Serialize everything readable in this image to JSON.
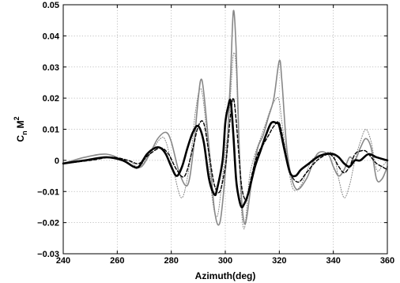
{
  "chart_data": {
    "type": "line",
    "xlabel": "Azimuth(deg)",
    "ylabel": {
      "base": "C",
      "sub": "n",
      "mid": "M",
      "sup": "2"
    },
    "xlim": [
      240,
      360
    ],
    "ylim": [
      -0.03,
      0.05
    ],
    "xticks": [
      240,
      260,
      280,
      300,
      320,
      340,
      360
    ],
    "yticks": [
      -0.03,
      -0.02,
      -0.01,
      0,
      0.01,
      0.02,
      0.03,
      0.04,
      0.05
    ],
    "xtick_labels": [
      "240",
      "260",
      "280",
      "300",
      "320",
      "340",
      "360"
    ],
    "ytick_labels": [
      "−0.03",
      "−0.02",
      "−0.01",
      "0",
      "0.01",
      "0.02",
      "0.03",
      "0.04",
      "0.05"
    ],
    "grid": true,
    "legend": false,
    "series": [
      {
        "style": "dotted",
        "color": "#808080",
        "x": [
          240,
          250,
          258,
          264,
          268,
          272,
          276,
          278,
          281,
          284,
          287,
          289,
          291,
          293,
          295,
          297,
          299,
          301,
          302,
          303,
          304,
          305,
          306,
          307,
          308,
          309,
          311,
          313,
          315,
          317,
          319,
          320,
          321,
          323,
          325,
          328,
          332,
          336,
          340,
          342,
          344,
          346,
          348,
          350,
          352,
          354,
          356,
          358,
          360
        ],
        "y": [
          -0.001,
          0,
          0.001,
          0,
          -0.002,
          0.002,
          0.007,
          0.006,
          -0.004,
          -0.012,
          0.0,
          0.016,
          0.023,
          0.01,
          -0.011,
          -0.018,
          -0.005,
          0.01,
          0.022,
          0.034,
          0.03,
          0.005,
          -0.016,
          -0.022,
          -0.015,
          -0.005,
          0.002,
          0.007,
          0.012,
          0.017,
          0.02,
          0.019,
          0.012,
          0.0,
          -0.009,
          -0.008,
          0.0,
          0.002,
          0.002,
          -0.006,
          -0.012,
          -0.008,
          0.0,
          0.006,
          0.01,
          0.006,
          -0.003,
          -0.002,
          0.0
        ]
      },
      {
        "style": "solid",
        "color": "#888888",
        "x": [
          240,
          248,
          256,
          262,
          266,
          269,
          272,
          275,
          278,
          280,
          283,
          286,
          288,
          290,
          291,
          292,
          294,
          296,
          298,
          300,
          301,
          302,
          303,
          304,
          305,
          306,
          307,
          308,
          310,
          312,
          314,
          316,
          318,
          320,
          321,
          323,
          326,
          330,
          334,
          338,
          340,
          342,
          344,
          346,
          348,
          350,
          352,
          354,
          356,
          358,
          360
        ],
        "y": [
          -0.001,
          0.001,
          0.002,
          0,
          -0.002,
          -0.002,
          0.002,
          0.007,
          0.009,
          0.006,
          -0.004,
          -0.008,
          0.002,
          0.02,
          0.026,
          0.022,
          0.004,
          -0.016,
          -0.02,
          -0.004,
          0.01,
          0.028,
          0.048,
          0.036,
          0.008,
          -0.012,
          -0.02,
          -0.018,
          -0.005,
          0.004,
          0.008,
          0.014,
          0.02,
          0.032,
          0.025,
          0.002,
          -0.009,
          -0.006,
          0.002,
          0.002,
          -0.002,
          -0.005,
          -0.003,
          0.001,
          0.0,
          0.004,
          0.007,
          0.004,
          -0.006,
          -0.006,
          -0.002
        ]
      },
      {
        "style": "dashed",
        "color": "#000000",
        "x": [
          240,
          250,
          258,
          264,
          268,
          272,
          276,
          279,
          282,
          285,
          288,
          290,
          292,
          294,
          296,
          298,
          300,
          301,
          302,
          303,
          304,
          305,
          306,
          307,
          308,
          310,
          312,
          314,
          316,
          318,
          320,
          322,
          324,
          327,
          330,
          334,
          338,
          340,
          342,
          344,
          346,
          348,
          350,
          352,
          354,
          356,
          358,
          360
        ],
        "y": [
          -0.001,
          0,
          0.001,
          0,
          -0.001,
          0.002,
          0.004,
          0.002,
          -0.003,
          -0.005,
          0.004,
          0.011,
          0.012,
          0.002,
          -0.008,
          -0.01,
          -0.002,
          0.006,
          0.015,
          0.02,
          0.013,
          0.002,
          -0.008,
          -0.012,
          -0.012,
          -0.004,
          0.002,
          0.005,
          0.008,
          0.011,
          0.012,
          0.004,
          -0.004,
          -0.007,
          -0.004,
          0.0,
          0.002,
          0.001,
          -0.002,
          -0.004,
          -0.002,
          0.002,
          0.003,
          0.003,
          0.001,
          -0.001,
          -0.002,
          -0.003
        ]
      },
      {
        "style": "solid-thick",
        "color": "#000000",
        "x": [
          240,
          248,
          256,
          262,
          266,
          268,
          271,
          274,
          276,
          278,
          280,
          282,
          284,
          286,
          288,
          290,
          292,
          294,
          296,
          297,
          299,
          300,
          301,
          302,
          303,
          304,
          305,
          306,
          307,
          308,
          309,
          311,
          313,
          315,
          317,
          319,
          320,
          322,
          324,
          326,
          328,
          331,
          334,
          337,
          340,
          342,
          344,
          346,
          348,
          350,
          353,
          356,
          360
        ],
        "y": [
          -0.001,
          0.0,
          0.001,
          0.0,
          -0.002,
          -0.002,
          0.002,
          0.004,
          0.004,
          0.002,
          -0.002,
          -0.005,
          -0.002,
          0.004,
          0.009,
          0.011,
          0.006,
          -0.006,
          -0.011,
          -0.009,
          0.0,
          0.012,
          0.017,
          0.019,
          0.008,
          -0.006,
          -0.012,
          -0.015,
          -0.014,
          -0.012,
          -0.009,
          -0.002,
          0.003,
          0.008,
          0.012,
          0.012,
          0.011,
          0.003,
          -0.004,
          -0.005,
          -0.003,
          -0.001,
          0.001,
          0.002,
          0.002,
          0.001,
          -0.001,
          -0.002,
          0.0,
          0.0,
          0.002,
          0.001,
          0.0
        ]
      }
    ]
  }
}
